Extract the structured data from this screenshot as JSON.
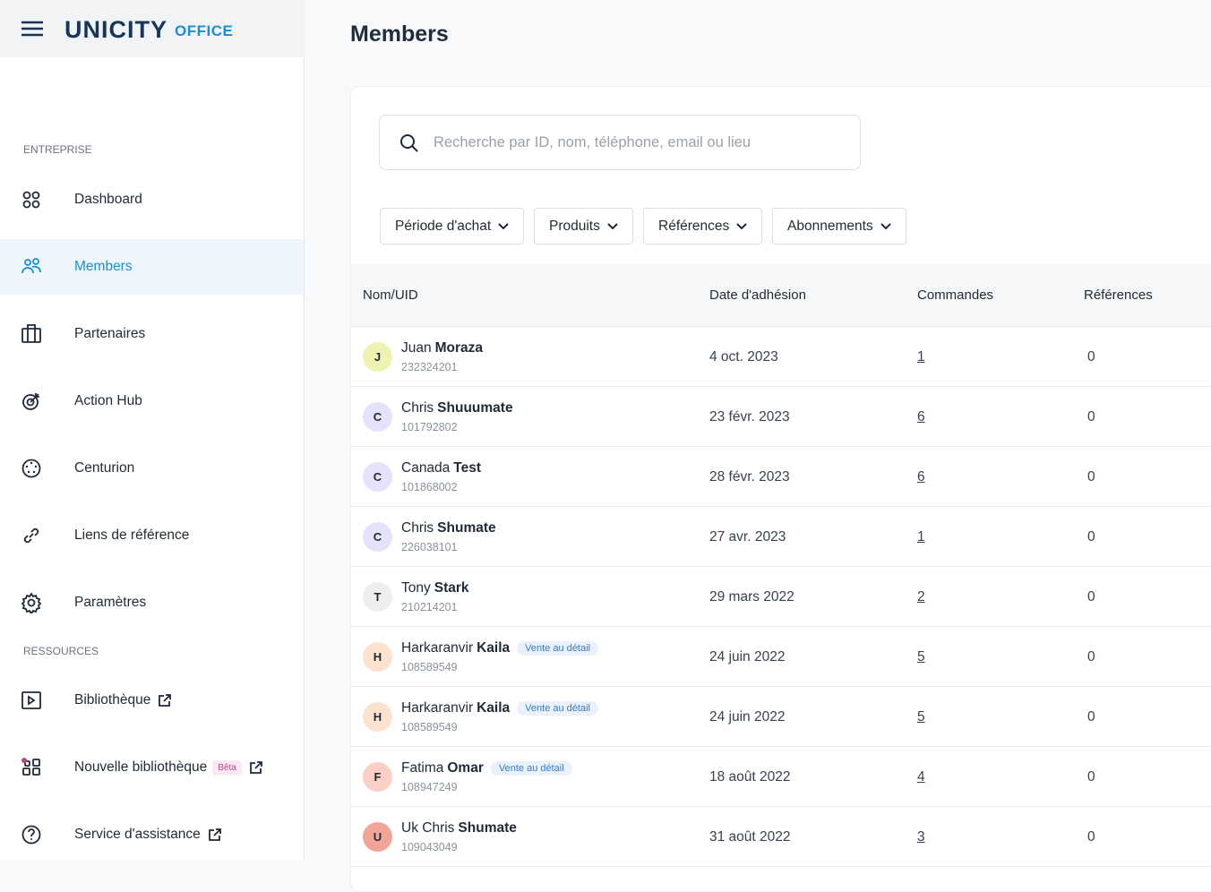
{
  "header": {
    "brand": "UNICITY",
    "brand_suffix": "OFFICE"
  },
  "sidebar": {
    "sections": [
      {
        "title": "ENTREPRISE",
        "items": [
          "Dashboard",
          "Members",
          "Partenaires",
          "Action Hub",
          "Centurion",
          "Liens de référence",
          "Paramètres"
        ]
      },
      {
        "title": "RESSOURCES",
        "items": [
          "Bibliothèque",
          "Nouvelle bibliothèque",
          "Service d'assistance"
        ]
      }
    ],
    "badge": "Bêta"
  },
  "page": {
    "title": "Members",
    "search_placeholder": "Recherche par ID, nom, téléphone, email ou lieu",
    "filters": [
      "Période d'achat",
      "Produits",
      "Références",
      "Abonnements"
    ]
  },
  "table": {
    "headers": [
      "Nom/UID",
      "Date d'adhésion",
      "Commandes",
      "Références"
    ],
    "rows": [
      {
        "initial": "J",
        "first": "Juan",
        "last": "Moraza",
        "uid": "232324201",
        "tag": null,
        "date": "4 oct. 2023",
        "orders": 1,
        "references": 0
      },
      {
        "initial": "C",
        "first": "Chris",
        "last": "Shuuumate",
        "uid": "101792802",
        "tag": null,
        "date": "23 févr. 2023",
        "orders": 6,
        "references": 0
      },
      {
        "initial": "C",
        "first": "Canada",
        "last": "Test",
        "uid": "101868002",
        "tag": null,
        "date": "28 févr. 2023",
        "orders": 6,
        "references": 0
      },
      {
        "initial": "C",
        "first": "Chris",
        "last": "Shumate",
        "uid": "226038101",
        "tag": null,
        "date": "27 avr. 2023",
        "orders": 1,
        "references": 0
      },
      {
        "initial": "T",
        "first": "Tony",
        "last": "Stark",
        "uid": "210214201",
        "tag": null,
        "date": "29 mars 2022",
        "orders": 2,
        "references": 0
      },
      {
        "initial": "H",
        "first": "Harkaranvir",
        "last": "Kaila",
        "uid": "108589549",
        "tag": "Vente au détail",
        "date": "24 juin 2022",
        "orders": 5,
        "references": 0
      },
      {
        "initial": "H",
        "first": "Harkaranvir",
        "last": "Kaila",
        "uid": "108589549",
        "tag": "Vente au détail",
        "date": "24 juin 2022",
        "orders": 5,
        "references": 0
      },
      {
        "initial": "F",
        "first": "Fatima",
        "last": "Omar",
        "uid": "108947249",
        "tag": "Vente au détail",
        "date": "18 août 2022",
        "orders": 4,
        "references": 0
      },
      {
        "initial": "U",
        "first": "Uk Chris",
        "last": "Shumate",
        "uid": "109043049",
        "tag": null,
        "date": "31 août 2022",
        "orders": 3,
        "references": 0
      }
    ]
  }
}
